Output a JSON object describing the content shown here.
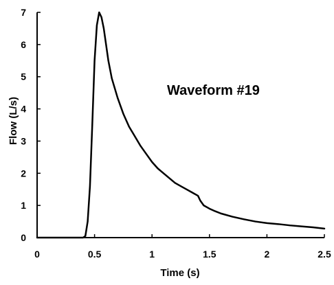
{
  "chart_data": {
    "type": "line",
    "title": "",
    "annotation": "Waveform #19",
    "xlabel": "Time (s)",
    "ylabel": "Flow (L/s)",
    "xlim": [
      0,
      2.5
    ],
    "ylim": [
      0,
      7
    ],
    "x_ticks": [
      "0",
      "0.5",
      "1",
      "1.5",
      "2",
      "2.5"
    ],
    "y_ticks": [
      "0",
      "1",
      "2",
      "3",
      "4",
      "5",
      "6",
      "7"
    ],
    "grid": false,
    "legend": "none",
    "line_color": "#000000",
    "series": [
      {
        "x": [
          0,
          0.4,
          0.42,
          0.44,
          0.46,
          0.48,
          0.5,
          0.52,
          0.54,
          0.56,
          0.58,
          0.6,
          0.62,
          0.65,
          0.7,
          0.75,
          0.8,
          0.85,
          0.9,
          0.95,
          1.0,
          1.05,
          1.1,
          1.15,
          1.2,
          1.25,
          1.3,
          1.35,
          1.4,
          1.42,
          1.45,
          1.5,
          1.55,
          1.6,
          1.7,
          1.8,
          1.9,
          2.0,
          2.1,
          2.2,
          2.3,
          2.4,
          2.5
        ],
        "values": [
          0,
          0,
          0.05,
          0.5,
          1.6,
          3.5,
          5.5,
          6.6,
          7.0,
          6.85,
          6.5,
          6.0,
          5.5,
          4.95,
          4.35,
          3.85,
          3.45,
          3.15,
          2.85,
          2.6,
          2.35,
          2.15,
          2.0,
          1.85,
          1.7,
          1.6,
          1.5,
          1.4,
          1.3,
          1.15,
          1.0,
          0.9,
          0.82,
          0.75,
          0.65,
          0.57,
          0.5,
          0.45,
          0.42,
          0.38,
          0.35,
          0.32,
          0.28
        ]
      }
    ]
  }
}
